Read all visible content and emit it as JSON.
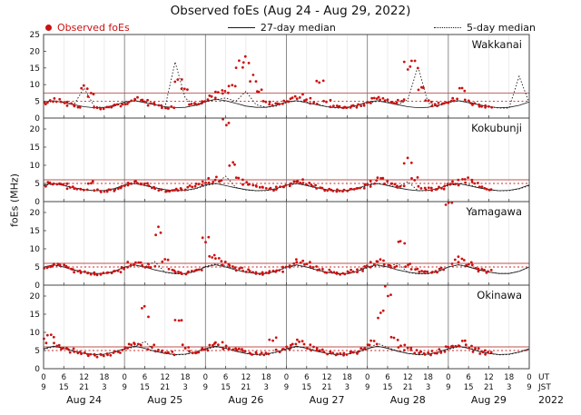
{
  "title": "Observed foEs (Aug 24 - Aug 29, 2022)",
  "legend": {
    "observed": "Observed foEs",
    "median27": "27-day median",
    "median5": "5-day median"
  },
  "ylabel": "foEs (MHz)",
  "axis": {
    "ut_label": "UT",
    "jst_label": "JST",
    "year": "2022",
    "day_labels": [
      "Aug 24",
      "Aug 25",
      "Aug 26",
      "Aug 27",
      "Aug 28",
      "Aug 29"
    ],
    "ut_tick_cycle": [
      "0",
      "6",
      "12",
      "18"
    ],
    "jst_tick_cycle": [
      "9",
      "15",
      "21",
      "3"
    ],
    "end_ut_tick": "0",
    "end_jst_tick": "9",
    "hours_total": 144,
    "tick_step_hours": 6
  },
  "colors": {
    "observed": "#cc1111",
    "median": "#1a1a1a",
    "threshold_solid": "#b85450",
    "threshold_dotted": "#cc2222",
    "grid_minor": "#e4e4e4",
    "grid_day": "#808080",
    "frame": "#444444",
    "text": "#111111"
  },
  "chart_data": {
    "type": "scatter",
    "x_unit": "hours since Aug 24 00:00 UT",
    "panels": [
      {
        "station": "Wakkanai",
        "ylim": [
          0,
          25
        ],
        "yticks": [
          0,
          5,
          10,
          15,
          20,
          25
        ],
        "threshold_solid": 7.5,
        "threshold_dotted": 5.0,
        "observed": {
          "t_start": 0,
          "t_step": 2,
          "values": [
            4.2,
            5.0,
            5.5,
            4.8,
            4.0,
            3.5,
            9.0,
            7.0,
            3.2,
            3.0,
            3.4,
            3.8,
            4.5,
            5.2,
            6.0,
            5.0,
            4.2,
            3.6,
            3.2,
            3.2,
            11.0,
            8.0,
            4.0,
            4.2,
            5.0,
            6.5,
            7.5,
            8.0,
            10.0,
            15.5,
            17.5,
            12.0,
            8.0,
            5.0,
            4.0,
            4.5,
            5.0,
            6.0,
            6.5,
            5.5,
            4.5,
            11.5,
            5.0,
            3.5,
            3.2,
            3.0,
            3.4,
            3.8,
            4.5,
            5.5,
            6.0,
            5.0,
            4.5,
            5.5,
            15.5,
            16.0,
            9.0,
            5.0,
            4.0,
            4.2,
            4.8,
            5.5,
            8.5,
            5.0,
            4.0,
            3.5,
            3.2
          ]
        },
        "median27": {
          "t_start": 0,
          "t_step": 3,
          "values": [
            4.8,
            5.2,
            4.6,
            4.0,
            3.4,
            3.1,
            3.2,
            3.8,
            4.8,
            5.2,
            4.6,
            4.0,
            3.4,
            3.1,
            3.2,
            3.8,
            5.0,
            5.6,
            5.2,
            4.4,
            3.6,
            3.2,
            3.2,
            3.8,
            4.8,
            5.2,
            4.6,
            4.0,
            3.4,
            3.1,
            3.2,
            3.8,
            4.8,
            5.2,
            4.6,
            4.0,
            3.4,
            3.1,
            3.2,
            3.8,
            4.8,
            5.2,
            4.6,
            4.0,
            3.4,
            3.1,
            3.2,
            3.8,
            4.8
          ]
        },
        "median5": {
          "t_start": 0,
          "t_step": 3,
          "values": [
            4.5,
            5.0,
            4.8,
            4.0,
            9.0,
            3.6,
            3.0,
            3.6,
            4.5,
            5.2,
            4.8,
            4.0,
            3.3,
            16.8,
            6.0,
            3.6,
            4.8,
            5.5,
            6.0,
            5.0,
            8.0,
            4.0,
            3.2,
            3.6,
            4.6,
            5.2,
            4.8,
            4.2,
            3.4,
            3.0,
            3.0,
            3.6,
            4.5,
            5.0,
            4.8,
            4.0,
            5.5,
            15.5,
            4.5,
            3.6,
            4.6,
            5.2,
            4.8,
            4.0,
            3.4,
            3.0,
            3.0,
            12.5,
            4.5
          ]
        }
      },
      {
        "station": "Kokubunji",
        "ylim": [
          0,
          23
        ],
        "yticks": [
          0,
          5,
          10,
          15,
          20
        ],
        "threshold_solid": 6.0,
        "threshold_dotted": 5.0,
        "observed": {
          "t_start": 0,
          "t_step": 2,
          "values": [
            4.0,
            4.8,
            5.2,
            4.6,
            4.0,
            3.5,
            3.2,
            5.5,
            3.0,
            2.8,
            3.2,
            3.6,
            4.2,
            5.0,
            5.5,
            4.8,
            4.0,
            3.4,
            3.0,
            3.0,
            3.3,
            3.6,
            4.0,
            4.5,
            5.0,
            5.8,
            6.2,
            22.0,
            10.0,
            6.0,
            5.0,
            4.5,
            4.0,
            3.6,
            3.4,
            3.8,
            4.5,
            5.2,
            5.6,
            5.0,
            4.4,
            3.8,
            3.2,
            3.0,
            3.0,
            3.2,
            3.5,
            4.0,
            4.6,
            5.4,
            6.0,
            5.2,
            4.6,
            4.2,
            11.0,
            6.0,
            4.0,
            3.6,
            3.4,
            3.8,
            4.4,
            5.0,
            5.6,
            6.5,
            5.0,
            4.0,
            3.5
          ]
        },
        "median27": {
          "t_start": 0,
          "t_step": 3,
          "values": [
            4.6,
            5.0,
            4.4,
            3.8,
            3.3,
            3.0,
            3.1,
            3.6,
            4.6,
            5.0,
            4.4,
            3.8,
            3.3,
            3.0,
            3.1,
            3.6,
            4.6,
            5.0,
            4.4,
            3.8,
            3.3,
            3.0,
            3.1,
            3.6,
            4.6,
            5.0,
            4.4,
            3.8,
            3.3,
            3.0,
            3.1,
            3.6,
            4.6,
            5.0,
            4.4,
            3.8,
            3.3,
            3.0,
            3.1,
            3.6,
            4.6,
            5.0,
            4.4,
            3.8,
            3.3,
            3.0,
            3.1,
            3.6,
            4.6
          ]
        },
        "median5": {
          "t_start": 0,
          "t_step": 3,
          "values": [
            4.4,
            4.9,
            4.6,
            3.9,
            3.2,
            3.0,
            3.0,
            3.5,
            4.4,
            4.9,
            4.6,
            3.9,
            3.2,
            3.0,
            3.0,
            3.5,
            4.4,
            4.9,
            7.0,
            3.9,
            3.2,
            3.0,
            3.0,
            3.5,
            4.4,
            4.9,
            4.6,
            3.9,
            3.2,
            3.0,
            3.0,
            3.5,
            4.4,
            4.9,
            4.6,
            3.9,
            5.5,
            3.0,
            3.0,
            3.5,
            4.4,
            4.9,
            4.6,
            3.9,
            3.2,
            3.0,
            3.0,
            3.5,
            4.4
          ]
        }
      },
      {
        "station": "Yamagawa",
        "ylim": [
          0,
          23
        ],
        "yticks": [
          0,
          5,
          10,
          15,
          20
        ],
        "threshold_solid": 6.0,
        "threshold_dotted": 5.0,
        "observed": {
          "t_start": 0,
          "t_step": 2,
          "values": [
            4.5,
            5.5,
            6.0,
            5.2,
            4.5,
            3.8,
            3.4,
            3.2,
            3.0,
            3.2,
            3.5,
            4.0,
            4.8,
            5.8,
            6.5,
            5.5,
            4.8,
            15.2,
            7.0,
            4.0,
            3.4,
            3.2,
            3.6,
            4.2,
            13.0,
            8.0,
            6.8,
            6.0,
            5.0,
            4.5,
            4.0,
            3.6,
            3.4,
            3.2,
            3.6,
            4.0,
            5.0,
            6.0,
            6.8,
            5.8,
            5.0,
            4.4,
            3.8,
            3.4,
            3.2,
            3.4,
            3.8,
            4.2,
            5.2,
            6.2,
            7.0,
            6.0,
            5.2,
            12.3,
            5.5,
            4.2,
            3.6,
            3.4,
            3.8,
            4.4,
            21.0,
            6.5,
            7.2,
            6.0,
            5.0,
            4.2,
            3.8
          ]
        },
        "median27": {
          "t_start": 0,
          "t_step": 3,
          "values": [
            5.0,
            5.6,
            5.0,
            4.2,
            3.6,
            3.2,
            3.2,
            3.8,
            5.0,
            5.6,
            5.0,
            4.2,
            3.6,
            3.2,
            3.2,
            3.8,
            5.0,
            5.6,
            5.0,
            4.2,
            3.6,
            3.2,
            3.2,
            3.8,
            5.0,
            5.6,
            5.0,
            4.2,
            3.6,
            3.2,
            3.2,
            3.8,
            5.0,
            5.6,
            5.0,
            4.2,
            3.6,
            3.2,
            3.2,
            3.8,
            5.0,
            5.6,
            5.0,
            4.2,
            3.6,
            3.2,
            3.2,
            3.8,
            5.0
          ]
        },
        "median5": {
          "t_start": 0,
          "t_step": 3,
          "values": [
            4.8,
            5.4,
            5.0,
            4.1,
            3.5,
            3.1,
            3.1,
            3.7,
            4.8,
            5.4,
            5.0,
            6.5,
            3.5,
            3.1,
            3.1,
            3.7,
            5.2,
            5.8,
            5.4,
            4.3,
            3.6,
            3.2,
            3.2,
            3.8,
            4.8,
            5.4,
            5.0,
            4.1,
            3.5,
            3.1,
            3.1,
            3.7,
            4.8,
            5.4,
            5.0,
            6.0,
            3.5,
            3.1,
            3.1,
            3.7,
            5.0,
            5.6,
            5.2,
            4.2,
            3.6,
            3.2,
            3.2,
            3.8,
            5.0
          ]
        }
      },
      {
        "station": "Okinawa",
        "ylim": [
          0,
          23
        ],
        "yticks": [
          0,
          5,
          10,
          15,
          20
        ],
        "threshold_solid": 6.0,
        "threshold_dotted": 5.0,
        "observed": {
          "t_start": 0,
          "t_step": 2,
          "values": [
            7.5,
            9.0,
            6.5,
            5.5,
            5.0,
            4.5,
            4.0,
            3.8,
            3.6,
            3.8,
            4.0,
            4.5,
            5.5,
            6.5,
            7.0,
            15.5,
            6.0,
            5.0,
            4.5,
            4.2,
            13.0,
            6.0,
            4.5,
            4.8,
            5.5,
            6.5,
            7.0,
            6.0,
            5.5,
            5.0,
            4.5,
            4.2,
            4.0,
            4.2,
            8.0,
            5.0,
            5.8,
            6.8,
            7.2,
            6.2,
            5.5,
            5.0,
            4.5,
            4.2,
            4.0,
            4.2,
            4.5,
            5.0,
            6.0,
            7.0,
            15.0,
            20.5,
            8.0,
            6.0,
            5.2,
            4.8,
            4.4,
            4.2,
            4.5,
            4.8,
            5.5,
            6.5,
            7.0,
            6.0,
            5.2,
            4.6,
            4.2
          ]
        },
        "median27": {
          "t_start": 0,
          "t_step": 3,
          "values": [
            5.5,
            6.2,
            5.6,
            4.8,
            4.2,
            3.9,
            4.0,
            4.6,
            5.5,
            6.2,
            5.6,
            4.8,
            4.2,
            3.9,
            4.0,
            4.6,
            5.5,
            6.2,
            5.6,
            4.8,
            4.2,
            3.9,
            4.0,
            4.6,
            5.5,
            6.2,
            5.6,
            4.8,
            4.2,
            3.9,
            4.0,
            4.6,
            5.5,
            6.2,
            5.6,
            4.8,
            4.2,
            3.9,
            4.0,
            4.6,
            5.5,
            6.2,
            5.6,
            4.8,
            4.2,
            3.9,
            4.0,
            4.6,
            5.5
          ]
        },
        "median5": {
          "t_start": 0,
          "t_step": 3,
          "values": [
            5.3,
            6.0,
            5.8,
            4.9,
            4.2,
            3.8,
            3.9,
            4.5,
            5.3,
            6.0,
            7.5,
            4.9,
            4.2,
            3.8,
            3.9,
            4.5,
            5.3,
            6.0,
            5.8,
            4.9,
            4.2,
            3.8,
            3.9,
            4.5,
            5.3,
            6.0,
            5.8,
            4.9,
            4.2,
            3.8,
            3.9,
            4.5,
            5.3,
            7.0,
            5.8,
            4.9,
            4.2,
            3.8,
            3.9,
            4.5,
            5.3,
            6.0,
            5.8,
            4.9,
            4.2,
            3.8,
            3.9,
            4.5,
            5.3
          ]
        }
      }
    ]
  }
}
